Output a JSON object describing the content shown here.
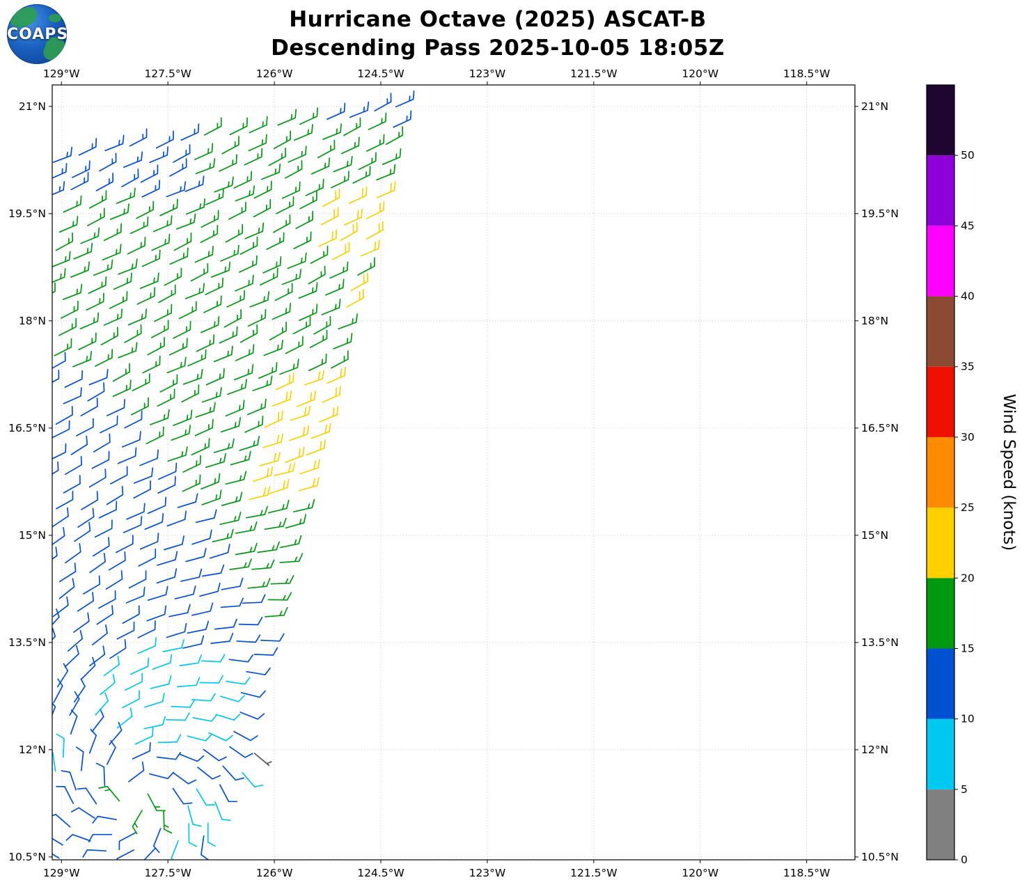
{
  "header": {
    "title_line1": "Hurricane Octave (2025) ASCAT-B",
    "title_line2": "Descending Pass 2025-10-05 18:05Z",
    "logo_text": "COAPS"
  },
  "axes": {
    "lon_tick_labels": [
      "129°W",
      "127.5°W",
      "126°W",
      "124.5°W",
      "123°W",
      "121.5°W",
      "120°W",
      "118.5°W"
    ],
    "lon_tick_values": [
      -129,
      -127.5,
      -126,
      -124.5,
      -123,
      -121.5,
      -120,
      -118.5
    ],
    "lat_tick_labels": [
      "10.5°N",
      "12°N",
      "13.5°N",
      "15°N",
      "16.5°N",
      "18°N",
      "19.5°N",
      "21°N"
    ],
    "lat_tick_values": [
      10.5,
      12,
      13.5,
      15,
      16.5,
      18,
      19.5,
      21
    ],
    "lon_range": [
      -129.13,
      -117.82
    ],
    "lat_range": [
      10.46,
      21.3
    ]
  },
  "colorbar": {
    "label": "Wind Speed (knots)",
    "tick_values": [
      0,
      5,
      10,
      15,
      20,
      25,
      30,
      35,
      40,
      45,
      50
    ],
    "segment_bounds": [
      0,
      5,
      10,
      15,
      20,
      25,
      30,
      35,
      40,
      45,
      50,
      55
    ],
    "segment_colors": [
      "#808080",
      "#00c8f0",
      "#0050d2",
      "#009a10",
      "#ffd000",
      "#ff8c00",
      "#ee1000",
      "#8c4a32",
      "#ff00ff",
      "#8e00d8",
      "#1e0630"
    ]
  },
  "chart_data": {
    "type": "wind_barbs",
    "title": "Hurricane Octave (2025) ASCAT-B Descending Pass 2025-10-05 18:05Z",
    "units": "knots",
    "lon_range": [
      -129.13,
      -117.82
    ],
    "lat_range": [
      10.46,
      21.3
    ],
    "grid_on": true,
    "swath": {
      "lat_min": 10.5,
      "lat_max": 21.18,
      "row_step": 0.255,
      "col_step": 0.345,
      "west_lon": -129.28,
      "east_lon_at_top": -124.05,
      "east_ref_lat": 21.25,
      "east_edge_slope": 0.267,
      "row_shear": 0.05,
      "jitter_deg": 0.09
    },
    "flow_model": {
      "cyclone_center_lat": 11.35,
      "cyclone_center_lon": -128.0,
      "inflow_factor": 0.45,
      "background_flow_toward_deg": 245,
      "blend_r0": 1.2,
      "blend_r1": 6.7
    },
    "speed_field": {
      "default_kt": 17,
      "zones": [
        {
          "type": "box",
          "lat_min": 19.7,
          "lon_max": -127.25,
          "kt": 13
        },
        {
          "type": "box",
          "lat_min": 20.7,
          "lon_min": -125.6,
          "kt": 13
        },
        {
          "type": "west_of_line",
          "lat_min": 13.2,
          "lat_max": 17.35,
          "line_lat0": 14.0,
          "line_lon0": -126.3,
          "dlon_dlat": -0.68,
          "kt": 12
        },
        {
          "type": "box",
          "lat_max": 13.2,
          "kt": 12
        },
        {
          "type": "edge_band",
          "lat_min": 15.35,
          "lat_max": 17.15,
          "depth_deg": 1.05,
          "kt": 22
        },
        {
          "type": "edge_band",
          "lat_min": 18.85,
          "lat_max": 19.85,
          "depth_deg": 0.95,
          "kt": 22
        },
        {
          "type": "edge_band",
          "lat_min": 18.1,
          "lat_max": 18.5,
          "depth_deg": 0.4,
          "kt": 22
        },
        {
          "type": "ellipse",
          "lat": 12.7,
          "lon": -127.6,
          "rlat": 0.75,
          "rlon": 1.0,
          "kt": 8
        },
        {
          "type": "ellipse",
          "lat": 11.15,
          "lon": -127.15,
          "rlat": 0.35,
          "rlon": 0.55,
          "kt": 8
        },
        {
          "type": "ellipse",
          "lat": 11.9,
          "lon": -128.95,
          "rlat": 0.22,
          "rlon": 0.35,
          "kt": 8
        },
        {
          "type": "ellipse",
          "lat": 10.55,
          "lon": -127.3,
          "rlat": 0.2,
          "rlon": 0.4,
          "kt": 8
        },
        {
          "type": "ellipse",
          "lat": 11.25,
          "lon": -127.95,
          "rlat": 0.28,
          "rlon": 0.45,
          "kt": 16
        }
      ]
    },
    "speed_colors": [
      {
        "max_kt": 5,
        "color": "#808080"
      },
      {
        "max_kt": 10,
        "color": "#00c8f0"
      },
      {
        "max_kt": 15,
        "color": "#0050d2"
      },
      {
        "max_kt": 20,
        "color": "#009a10"
      },
      {
        "max_kt": 25,
        "color": "#ffd000"
      }
    ],
    "extra_barbs": [
      {
        "lat": 11.95,
        "lon": -126.28,
        "kt": 3,
        "color": "#555555"
      },
      {
        "lat": 11.68,
        "lon": -126.45,
        "kt": 8
      }
    ]
  }
}
